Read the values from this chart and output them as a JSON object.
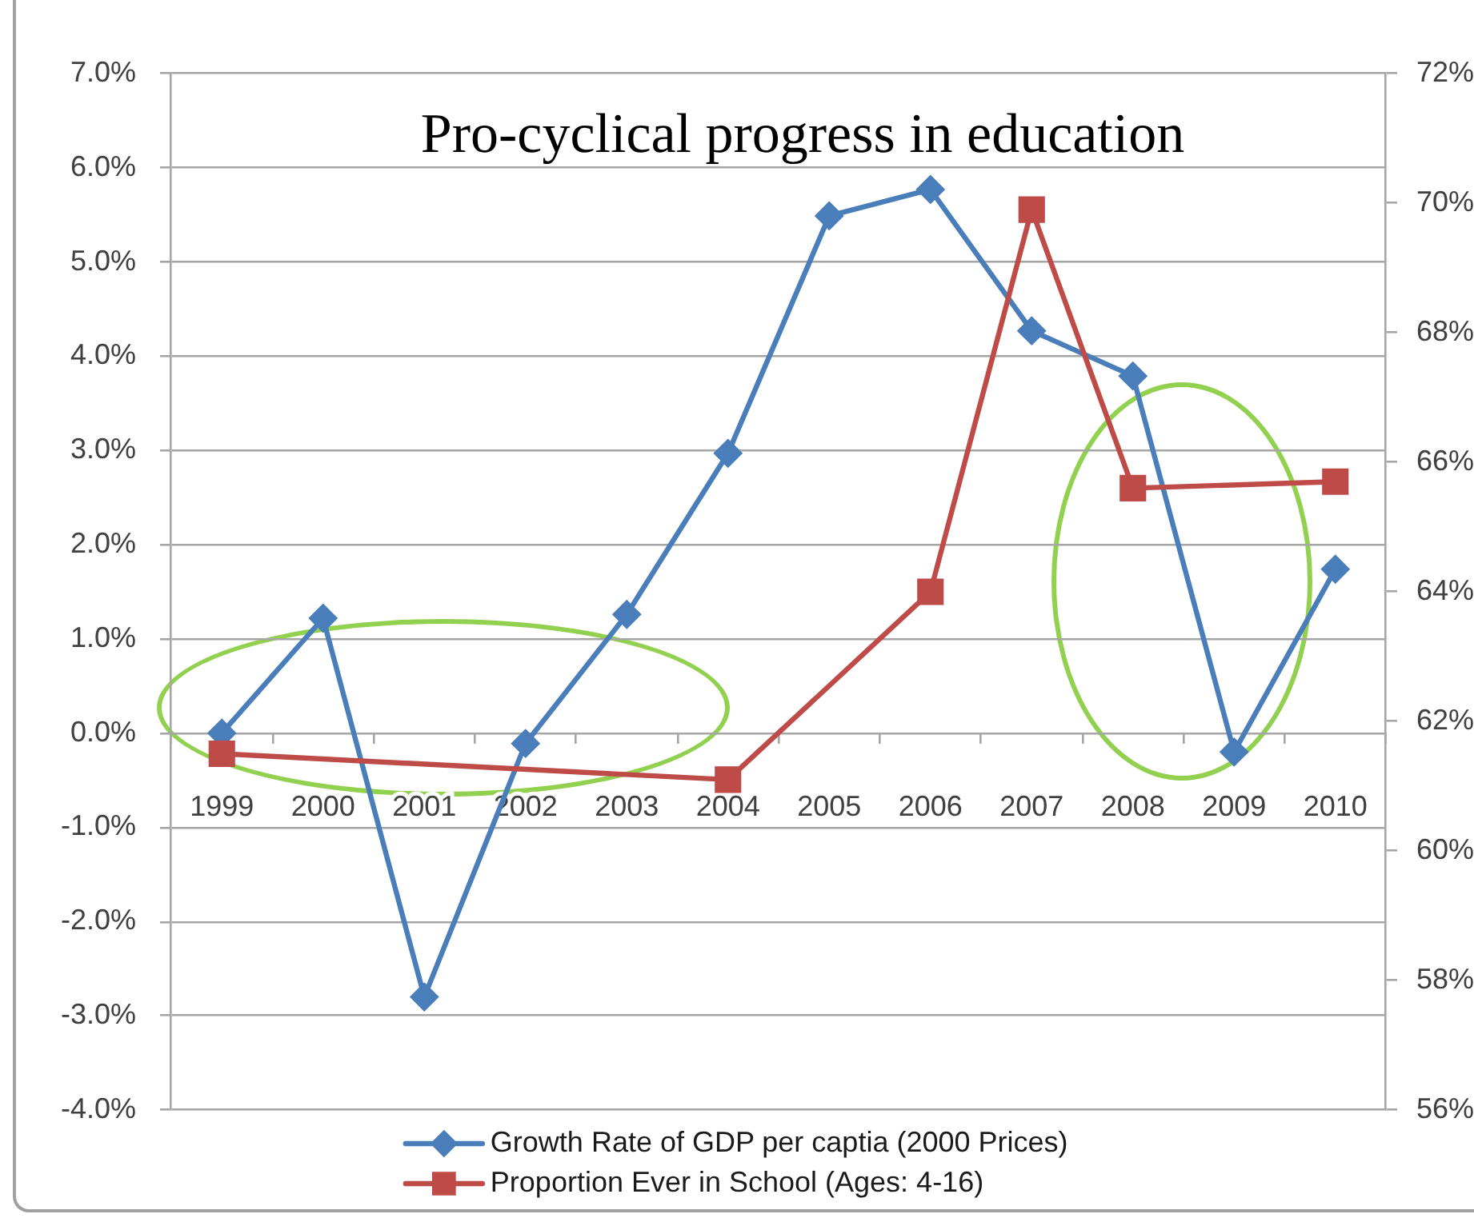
{
  "chart_data": {
    "type": "line",
    "title": "Pro-cyclical progress in education",
    "categories": [
      "1999",
      "2000",
      "2001",
      "2002",
      "2003",
      "2004",
      "2005",
      "2006",
      "2007",
      "2008",
      "2009",
      "2010"
    ],
    "series": [
      {
        "name": "Growth Rate of GDP per captia (2000 Prices)",
        "color": "#4a7ebb",
        "marker": "diamond",
        "values": [
          0.0,
          1.22,
          -2.8,
          -0.11,
          1.26,
          2.97,
          5.49,
          5.77,
          4.27,
          3.79,
          -0.2,
          1.74
        ]
      },
      {
        "name": "Proportion Ever in School (Ages: 4-16)",
        "color": "#be4b48",
        "marker": "square",
        "axis": "y2",
        "values": [
          61.5,
          null,
          null,
          null,
          null,
          61.1,
          null,
          64.0,
          69.9,
          65.6,
          null,
          65.7
        ]
      }
    ],
    "ylim": [
      -4,
      7
    ],
    "yticks": [
      {
        "value": -4,
        "label": "-4.0%"
      },
      {
        "value": -3,
        "label": "-3.0%"
      },
      {
        "value": -2,
        "label": "-2.0%"
      },
      {
        "value": -1,
        "label": "-1.0%"
      },
      {
        "value": 0,
        "label": "0.0%"
      },
      {
        "value": 1,
        "label": "1.0%"
      },
      {
        "value": 2,
        "label": "2.0%"
      },
      {
        "value": 3,
        "label": "3.0%"
      },
      {
        "value": 4,
        "label": "4.0%"
      },
      {
        "value": 5,
        "label": "5.0%"
      },
      {
        "value": 6,
        "label": "6.0%"
      },
      {
        "value": 7,
        "label": "7.0%"
      }
    ],
    "y2lim": [
      56,
      72
    ],
    "y2ticks": [
      {
        "value": 56,
        "label": "56%"
      },
      {
        "value": 58,
        "label": "58%"
      },
      {
        "value": 60,
        "label": "60%"
      },
      {
        "value": 62,
        "label": "62%"
      },
      {
        "value": 64,
        "label": "64%"
      },
      {
        "value": 66,
        "label": "66%"
      },
      {
        "value": 68,
        "label": "68%"
      },
      {
        "value": 70,
        "label": "70%"
      },
      {
        "value": 72,
        "label": "72%"
      }
    ],
    "grid": "y",
    "legend": "bottom",
    "line_style": "solid"
  }
}
